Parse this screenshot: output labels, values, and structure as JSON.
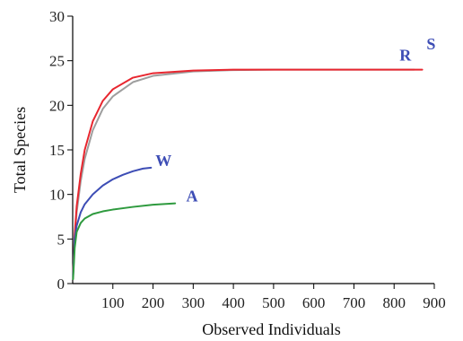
{
  "chart_data": {
    "type": "line",
    "xlabel": "Observed Individuals",
    "ylabel": "Total Species",
    "xlim": [
      0,
      900
    ],
    "ylim": [
      0,
      30
    ],
    "x_ticks": [
      100,
      200,
      300,
      400,
      500,
      600,
      700,
      800,
      900
    ],
    "y_ticks": [
      0,
      5,
      10,
      15,
      20,
      25,
      30
    ],
    "grid": false,
    "legend": "none",
    "series": [
      {
        "name": "S",
        "color": "#9e9e9e",
        "points": [
          [
            1,
            1
          ],
          [
            5,
            5.1
          ],
          [
            10,
            8
          ],
          [
            20,
            11.5
          ],
          [
            30,
            14
          ],
          [
            50,
            17.2
          ],
          [
            75,
            19.6
          ],
          [
            100,
            21
          ],
          [
            150,
            22.6
          ],
          [
            200,
            23.3
          ],
          [
            300,
            23.8
          ],
          [
            400,
            23.95
          ],
          [
            500,
            24
          ],
          [
            600,
            24
          ],
          [
            700,
            24
          ],
          [
            800,
            24
          ],
          [
            850,
            24
          ]
        ]
      },
      {
        "name": "R",
        "color": "#e8262f",
        "points": [
          [
            1,
            1
          ],
          [
            5,
            5.5
          ],
          [
            10,
            8.7
          ],
          [
            20,
            12.3
          ],
          [
            30,
            15
          ],
          [
            50,
            18.2
          ],
          [
            75,
            20.5
          ],
          [
            100,
            21.8
          ],
          [
            150,
            23.1
          ],
          [
            200,
            23.6
          ],
          [
            300,
            23.9
          ],
          [
            400,
            24
          ],
          [
            500,
            24
          ],
          [
            600,
            24
          ],
          [
            700,
            24
          ],
          [
            800,
            24
          ],
          [
            870,
            24
          ]
        ]
      },
      {
        "name": "W",
        "color": "#3d4db5",
        "points": [
          [
            1,
            0.8
          ],
          [
            5,
            5
          ],
          [
            10,
            6.5
          ],
          [
            20,
            8
          ],
          [
            30,
            8.9
          ],
          [
            50,
            10
          ],
          [
            75,
            11
          ],
          [
            100,
            11.7
          ],
          [
            125,
            12.2
          ],
          [
            150,
            12.6
          ],
          [
            175,
            12.9
          ],
          [
            195,
            13
          ]
        ]
      },
      {
        "name": "A",
        "color": "#2e9a3e",
        "points": [
          [
            1,
            0.5
          ],
          [
            5,
            4
          ],
          [
            10,
            5.8
          ],
          [
            20,
            6.8
          ],
          [
            30,
            7.3
          ],
          [
            50,
            7.8
          ],
          [
            75,
            8.1
          ],
          [
            100,
            8.3
          ],
          [
            150,
            8.6
          ],
          [
            200,
            8.85
          ],
          [
            255,
            9
          ]
        ]
      }
    ],
    "labels": [
      {
        "text": "R",
        "x": 828,
        "y": 25,
        "color": "#3d4db5",
        "series": "R"
      },
      {
        "text": "S",
        "x": 892,
        "y": 26.3,
        "color": "#3d4db5",
        "series": "S"
      },
      {
        "text": "W",
        "x": 226,
        "y": 13.2,
        "color": "#3d4db5",
        "series": "W"
      },
      {
        "text": "A",
        "x": 297,
        "y": 9.2,
        "color": "#3d4db5",
        "series": "A"
      }
    ]
  }
}
